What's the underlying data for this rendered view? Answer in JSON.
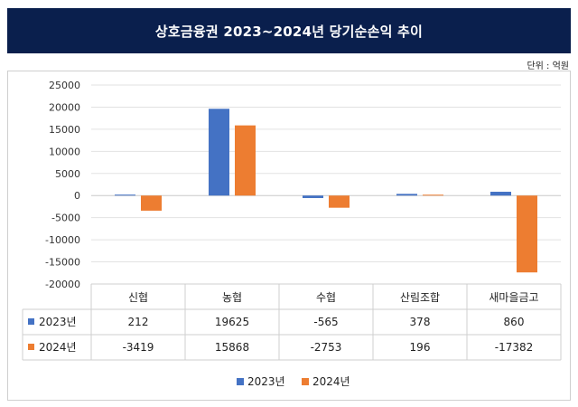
{
  "title": "상호금융권 2023~2024년 당기순손익 추이",
  "unit": "단위 : 억원",
  "chart_data": {
    "type": "bar",
    "title": "상호금융권 2023~2024년 당기순손익 추이",
    "categories": [
      "신협",
      "농협",
      "수협",
      "산림조합",
      "새마을금고"
    ],
    "series": [
      {
        "name": "2023년",
        "values": [
          212,
          19625,
          -565,
          378,
          860
        ]
      },
      {
        "name": "2024년",
        "values": [
          -3419,
          15868,
          -2753,
          196,
          -17382
        ]
      }
    ],
    "ylim": [
      -20000,
      25000
    ],
    "yticks": [
      25000,
      20000,
      15000,
      10000,
      5000,
      0,
      -5000,
      -10000,
      -15000,
      -20000
    ],
    "grid": true,
    "legend": "bottom",
    "colors": {
      "2023년": "#4472c4",
      "2024년": "#ed7d31"
    }
  }
}
